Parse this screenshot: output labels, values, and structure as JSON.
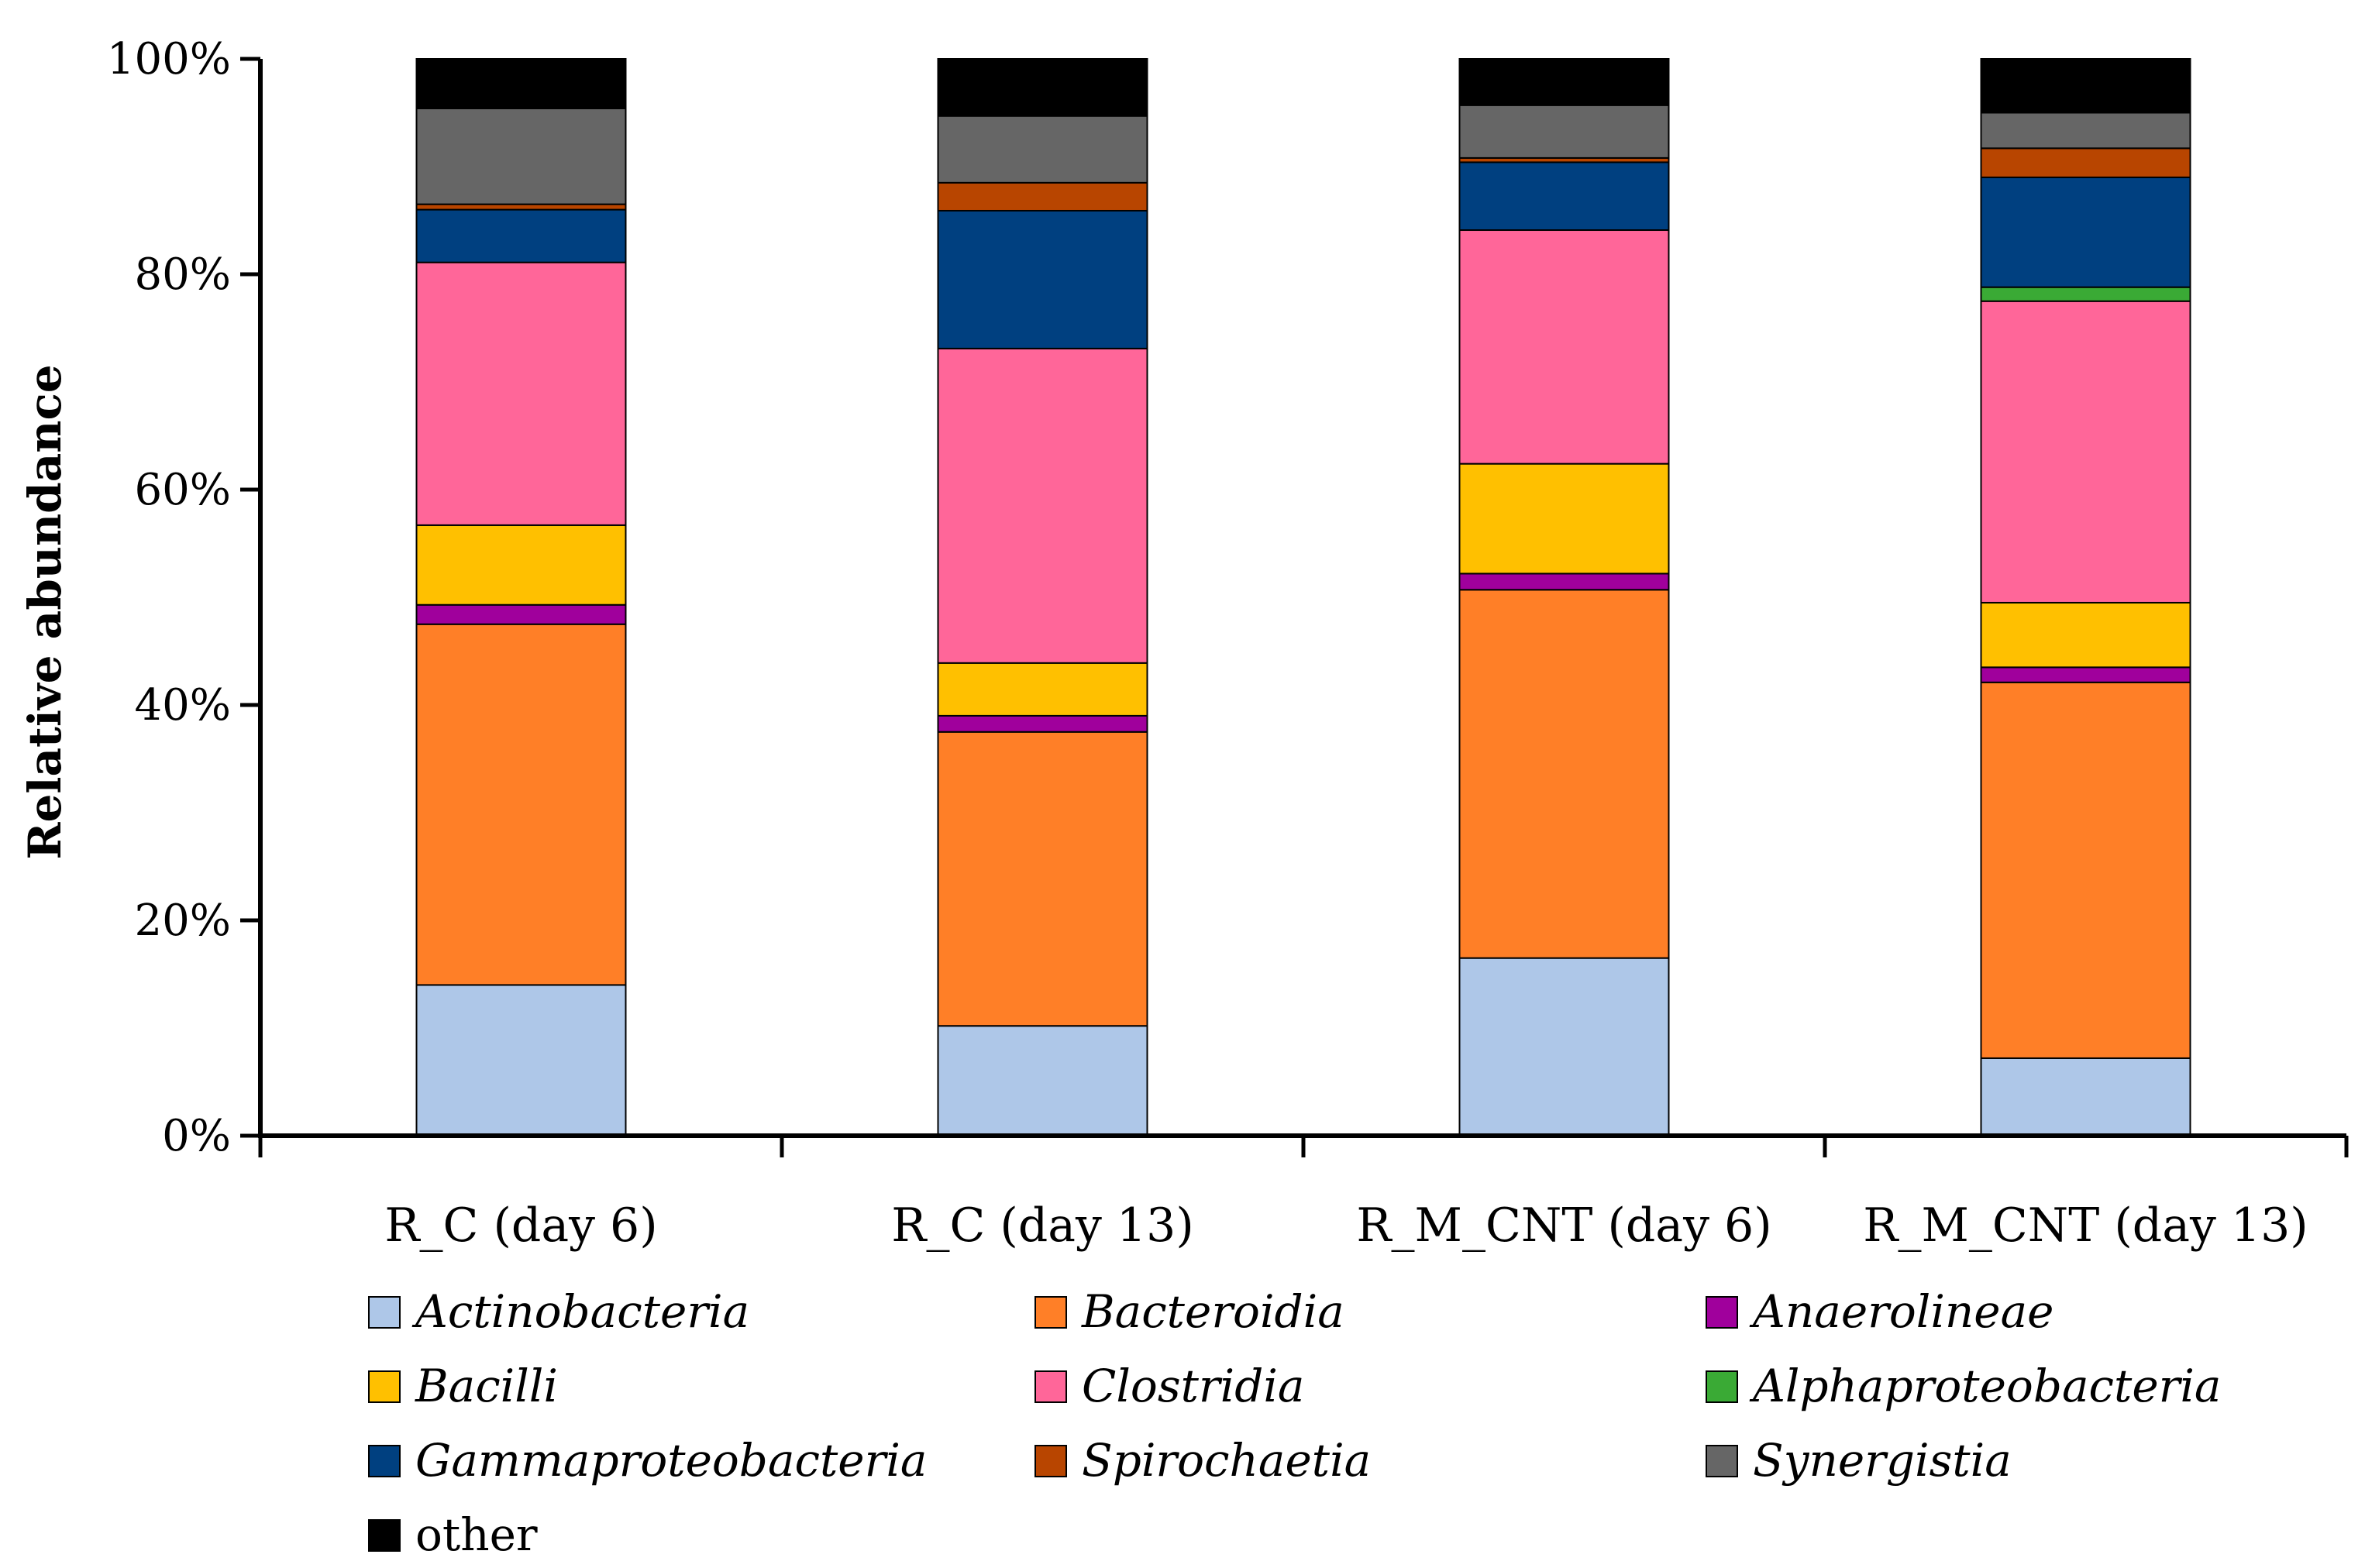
{
  "chart_data": {
    "type": "bar",
    "stacked": true,
    "ylabel": "Relative abundance",
    "xlabel": "",
    "ylim": [
      0,
      100
    ],
    "y_ticks": [
      "0%",
      "20%",
      "40%",
      "60%",
      "80%",
      "100%"
    ],
    "grid": false,
    "legend_position": "bottom",
    "categories": [
      "R_C (day 6)",
      "R_C (day 13)",
      "R_M_CNT (day 6)",
      "R_M_CNT (day 13)"
    ],
    "series": [
      {
        "name": "Actinobacteria",
        "color": "#aec7e8",
        "italic": true,
        "values": [
          14.0,
          10.2,
          16.5,
          7.2
        ]
      },
      {
        "name": "Bacteroidia",
        "color": "#ff7f27",
        "italic": true,
        "values": [
          33.5,
          27.3,
          34.2,
          34.9
        ]
      },
      {
        "name": "Anaerolineae",
        "color": "#a0009c",
        "italic": true,
        "values": [
          1.8,
          1.5,
          1.5,
          1.4
        ]
      },
      {
        "name": "Bacilli",
        "color": "#ffc000",
        "italic": true,
        "values": [
          7.4,
          4.9,
          10.2,
          6.0
        ]
      },
      {
        "name": "Clostridia",
        "color": "#ff6699",
        "italic": true,
        "values": [
          24.4,
          29.2,
          21.7,
          28.0
        ]
      },
      {
        "name": "Alphaproteobacteria",
        "color": "#3aaa35",
        "italic": true,
        "values": [
          0.0,
          0.0,
          0.0,
          1.3
        ]
      },
      {
        "name": "Gammaproteobacteria",
        "color": "#004080",
        "italic": true,
        "values": [
          4.9,
          12.8,
          6.3,
          10.2
        ]
      },
      {
        "name": "Spirochaetia",
        "color": "#b84500",
        "italic": true,
        "values": [
          0.5,
          2.6,
          0.4,
          2.7
        ]
      },
      {
        "name": "Synergistia",
        "color": "#666666",
        "italic": true,
        "values": [
          8.9,
          6.2,
          4.9,
          3.3
        ]
      },
      {
        "name": "other",
        "color": "#000000",
        "italic": false,
        "values": [
          4.6,
          5.3,
          4.3,
          5.0
        ]
      }
    ]
  }
}
